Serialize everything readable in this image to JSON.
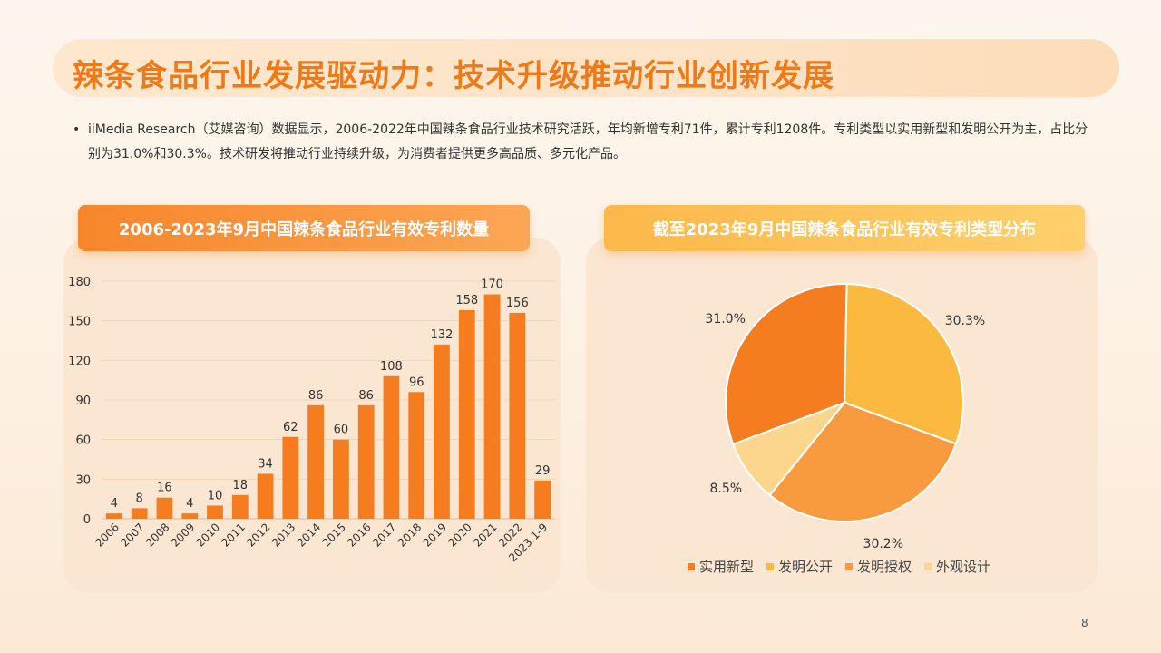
{
  "title": "辣条食品行业发展驱动力：技术升级推动行业创新发展",
  "bullet": "iiMedia Research（艾媒咨询）数据显示，2006-2022年中国辣条食品行业技术研究活跃，年均新增专利71件，累计专利1208件。专利类型以实用新型和发明公开为主，占比分别为31.0%和30.3%。技术研发将推动行业持续升级，为消费者提供更多高品质、多元化产品。",
  "bullet_dot": "•",
  "page_number": "8",
  "chart_data": [
    {
      "type": "bar",
      "title": "2006-2023年9月中国辣条食品行业有效专利数量",
      "categories": [
        "2006",
        "2007",
        "2008",
        "2009",
        "2010",
        "2011",
        "2012",
        "2013",
        "2014",
        "2015",
        "2016",
        "2017",
        "2018",
        "2019",
        "2020",
        "2021",
        "2022",
        "2023.1-9"
      ],
      "values": [
        4,
        8,
        16,
        4,
        10,
        18,
        34,
        62,
        86,
        60,
        86,
        108,
        96,
        132,
        158,
        170,
        156,
        29
      ],
      "ylim": [
        0,
        180
      ],
      "yticks": [
        0,
        30,
        60,
        90,
        120,
        150,
        180
      ],
      "grid": true,
      "color": "#f57c1f"
    },
    {
      "type": "pie",
      "title": "截至2023年9月中国辣条食品行业有效专利类型分布",
      "slices": [
        {
          "name": "实用新型",
          "value": 31.0,
          "label": "31.0%",
          "color": "#f57c1f"
        },
        {
          "name": "发明公开",
          "value": 30.3,
          "label": "30.3%",
          "color": "#fbb93f"
        },
        {
          "name": "发明授权",
          "value": 30.2,
          "label": "30.2%",
          "color": "#f89a3e"
        },
        {
          "name": "外观设计",
          "value": 8.5,
          "label": "8.5%",
          "color": "#fdd68e"
        }
      ],
      "legend": "bottom"
    }
  ]
}
